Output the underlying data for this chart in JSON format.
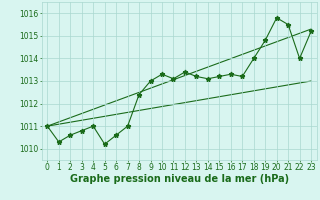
{
  "xlabel": "Graphe pression niveau de la mer (hPa)",
  "x": [
    0,
    1,
    2,
    3,
    4,
    5,
    6,
    7,
    8,
    9,
    10,
    11,
    12,
    13,
    14,
    15,
    16,
    17,
    18,
    19,
    20,
    21,
    22,
    23
  ],
  "y_main": [
    1011.0,
    1010.3,
    1010.6,
    1010.8,
    1011.0,
    1010.2,
    1010.6,
    1011.0,
    1012.4,
    1013.0,
    1013.3,
    1013.1,
    1013.4,
    1013.2,
    1013.1,
    1013.2,
    1013.3,
    1013.2,
    1014.0,
    1014.8,
    1015.8,
    1015.5,
    1014.0,
    1015.2
  ],
  "trend1_x": [
    0,
    23
  ],
  "trend1_y": [
    1011.0,
    1013.0
  ],
  "trend2_x": [
    0,
    23
  ],
  "trend2_y": [
    1011.0,
    1015.3
  ],
  "ylim": [
    1009.5,
    1016.5
  ],
  "xlim": [
    -0.5,
    23.5
  ],
  "yticks": [
    1010,
    1011,
    1012,
    1013,
    1014,
    1015,
    1016
  ],
  "xticks": [
    0,
    1,
    2,
    3,
    4,
    5,
    6,
    7,
    8,
    9,
    10,
    11,
    12,
    13,
    14,
    15,
    16,
    17,
    18,
    19,
    20,
    21,
    22,
    23
  ],
  "line_color": "#1a6b1a",
  "trend_color": "#1a6b1a",
  "bg_color": "#d8f5f0",
  "grid_color": "#aad8d0",
  "label_color": "#1a6b1a",
  "marker": "*",
  "marker_size": 3.5,
  "line_width": 0.8,
  "xlabel_fontsize": 7,
  "tick_fontsize": 5.5
}
